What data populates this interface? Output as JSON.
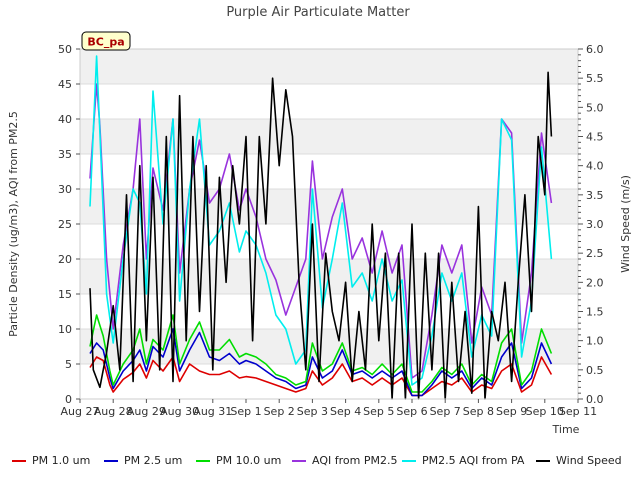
{
  "chart_data": {
    "type": "line",
    "title": "Purple Air Particulate Matter",
    "station_badge": "BC_pa",
    "xlabel": "Time",
    "ylabel_left": "Particle Density (ug/m3), AQI from PM2.5",
    "ylabel_right": "Wind Speed (m/s)",
    "ylim_left": [
      0,
      50
    ],
    "ylim_right": [
      0,
      6
    ],
    "x_ticks": [
      "Aug 27",
      "Aug 28",
      "Aug 29",
      "Aug 30",
      "Aug 31",
      "Sep 1",
      "Sep 2",
      "Sep 3",
      "Sep 4",
      "Sep 5",
      "Sep 6",
      "Sep 7",
      "Sep 8",
      "Sep 9",
      "Sep 10",
      "Sep 11"
    ],
    "y_ticks_left": [
      0,
      5,
      10,
      15,
      20,
      25,
      30,
      35,
      40,
      45,
      50
    ],
    "y_ticks_right": [
      "0.0",
      "0.5",
      "1.0",
      "1.5",
      "2.0",
      "2.5",
      "3.0",
      "3.5",
      "4.0",
      "4.5",
      "5.0",
      "5.5",
      "6.0"
    ],
    "x_unit": "days since Aug 27",
    "grid": true,
    "legend_position": "bottom",
    "series": [
      {
        "name": "PM 1.0 um",
        "color": "#dd0000",
        "axis": "left",
        "x": [
          0.3,
          0.5,
          0.7,
          0.9,
          1.0,
          1.3,
          1.6,
          1.8,
          2.0,
          2.2,
          2.5,
          2.8,
          3.0,
          3.3,
          3.6,
          3.9,
          4.2,
          4.5,
          4.8,
          5.0,
          5.3,
          5.6,
          5.9,
          6.2,
          6.5,
          6.8,
          7.0,
          7.3,
          7.6,
          7.9,
          8.2,
          8.5,
          8.8,
          9.1,
          9.4,
          9.7,
          10.0,
          10.3,
          10.6,
          10.9,
          11.2,
          11.5,
          11.8,
          12.1,
          12.4,
          12.7,
          13.0,
          13.3,
          13.6,
          13.9,
          14.2
        ],
        "y": [
          4.5,
          6.0,
          5.5,
          2.0,
          1.0,
          2.8,
          3.8,
          5.0,
          3.0,
          5.5,
          4.0,
          6.0,
          2.5,
          5.0,
          4.0,
          3.5,
          3.5,
          4.0,
          3.0,
          3.2,
          3.0,
          2.5,
          2.0,
          1.5,
          1.0,
          1.5,
          4.0,
          2.0,
          3.0,
          5.0,
          2.5,
          3.0,
          2.0,
          3.0,
          2.0,
          3.0,
          0.5,
          0.5,
          1.5,
          2.5,
          2.0,
          3.0,
          1.0,
          2.0,
          1.5,
          4.0,
          5.0,
          1.0,
          2.0,
          6.0,
          3.5
        ]
      },
      {
        "name": "PM 2.5 um",
        "color": "#0000cc",
        "axis": "left",
        "x": [
          0.3,
          0.5,
          0.7,
          0.9,
          1.0,
          1.3,
          1.6,
          1.8,
          2.0,
          2.2,
          2.5,
          2.8,
          3.0,
          3.3,
          3.6,
          3.9,
          4.2,
          4.5,
          4.8,
          5.0,
          5.3,
          5.6,
          5.9,
          6.2,
          6.5,
          6.8,
          7.0,
          7.3,
          7.6,
          7.9,
          8.2,
          8.5,
          8.8,
          9.1,
          9.4,
          9.7,
          10.0,
          10.3,
          10.6,
          10.9,
          11.2,
          11.5,
          11.8,
          12.1,
          12.4,
          12.7,
          13.0,
          13.3,
          13.6,
          13.9,
          14.2
        ],
        "y": [
          6.5,
          8.0,
          7.0,
          3.0,
          1.5,
          4.0,
          5.5,
          7.0,
          4.0,
          7.5,
          6.0,
          10.0,
          4.0,
          7.0,
          9.5,
          6.0,
          5.5,
          6.5,
          5.0,
          5.5,
          5.0,
          4.0,
          3.0,
          2.5,
          1.5,
          2.0,
          6.0,
          3.0,
          4.0,
          7.0,
          3.5,
          4.0,
          3.0,
          4.0,
          3.0,
          4.0,
          0.5,
          0.5,
          2.0,
          4.0,
          3.0,
          4.0,
          1.5,
          3.0,
          2.0,
          6.0,
          8.0,
          1.5,
          3.0,
          8.0,
          5.0
        ]
      },
      {
        "name": "PM 10.0 um",
        "color": "#00dd00",
        "axis": "left",
        "x": [
          0.3,
          0.5,
          0.7,
          0.9,
          1.0,
          1.3,
          1.6,
          1.8,
          2.0,
          2.2,
          2.5,
          2.8,
          3.0,
          3.3,
          3.6,
          3.9,
          4.2,
          4.5,
          4.8,
          5.0,
          5.3,
          5.6,
          5.9,
          6.2,
          6.5,
          6.8,
          7.0,
          7.3,
          7.6,
          7.9,
          8.2,
          8.5,
          8.8,
          9.1,
          9.4,
          9.7,
          10.0,
          10.3,
          10.6,
          10.9,
          11.2,
          11.5,
          11.8,
          12.1,
          12.4,
          12.7,
          13.0,
          13.3,
          13.6,
          13.9,
          14.2
        ],
        "y": [
          7.5,
          12.0,
          9.0,
          4.0,
          2.0,
          5.0,
          7.0,
          10.0,
          5.0,
          8.5,
          7.0,
          12.0,
          5.0,
          8.5,
          11.0,
          7.0,
          7.0,
          8.5,
          6.0,
          6.5,
          6.0,
          5.0,
          3.5,
          3.0,
          2.0,
          2.5,
          8.0,
          4.0,
          5.0,
          8.0,
          4.0,
          4.5,
          3.5,
          5.0,
          3.5,
          5.0,
          1.0,
          1.0,
          2.5,
          4.5,
          3.5,
          5.0,
          2.0,
          3.5,
          2.5,
          8.0,
          10.0,
          2.0,
          4.0,
          10.0,
          6.5
        ]
      },
      {
        "name": "AQI from PM2.5",
        "color": "#9933dd",
        "axis": "left",
        "x": [
          0.3,
          0.5,
          0.6,
          0.8,
          1.0,
          1.3,
          1.6,
          1.8,
          2.0,
          2.2,
          2.5,
          2.8,
          3.0,
          3.3,
          3.6,
          3.9,
          4.2,
          4.5,
          4.8,
          5.0,
          5.3,
          5.6,
          5.9,
          6.2,
          6.5,
          6.8,
          7.0,
          7.3,
          7.6,
          7.9,
          8.2,
          8.5,
          8.8,
          9.1,
          9.4,
          9.7,
          10.0,
          10.3,
          10.6,
          10.9,
          11.2,
          11.5,
          11.8,
          12.1,
          12.4,
          12.7,
          13.0,
          13.3,
          13.6,
          13.9,
          14.2
        ],
        "y": [
          31.5,
          45.0,
          39.0,
          20.0,
          10.0,
          22.0,
          30.0,
          40.0,
          20.0,
          33.0,
          27.0,
          40.0,
          18.0,
          30.0,
          37.0,
          28.0,
          30.0,
          35.0,
          27.0,
          30.0,
          26.0,
          20.0,
          17.0,
          12.0,
          16.0,
          20.0,
          34.0,
          20.0,
          26.0,
          30.0,
          20.0,
          23.0,
          18.0,
          24.0,
          18.0,
          22.0,
          3.0,
          4.0,
          12.0,
          22.0,
          18.0,
          22.0,
          8.0,
          16.0,
          12.0,
          40.0,
          38.0,
          8.0,
          18.0,
          38.0,
          28.0
        ]
      },
      {
        "name": "PM2.5 AQI from PA",
        "color": "#00eeee",
        "axis": "left",
        "x": [
          0.3,
          0.5,
          0.6,
          0.8,
          1.0,
          1.3,
          1.6,
          1.8,
          2.0,
          2.2,
          2.5,
          2.8,
          3.0,
          3.3,
          3.6,
          3.9,
          4.2,
          4.5,
          4.8,
          5.0,
          5.3,
          5.6,
          5.9,
          6.2,
          6.5,
          6.8,
          7.0,
          7.3,
          7.6,
          7.9,
          8.2,
          8.5,
          8.8,
          9.1,
          9.4,
          9.7,
          10.0,
          10.3,
          10.6,
          10.9,
          11.2,
          11.5,
          11.8,
          12.1,
          12.4,
          12.7,
          13.0,
          13.3,
          13.6,
          13.9,
          14.2
        ],
        "y": [
          27.5,
          49.0,
          38.0,
          15.0,
          8.0,
          20.0,
          30.0,
          28.0,
          15.0,
          44.0,
          25.0,
          40.0,
          14.0,
          30.0,
          40.0,
          22.0,
          24.0,
          28.0,
          21.0,
          24.0,
          22.0,
          18.0,
          12.0,
          10.0,
          5.0,
          7.0,
          30.0,
          13.0,
          20.0,
          28.0,
          16.0,
          18.0,
          14.0,
          20.0,
          14.0,
          17.0,
          2.0,
          3.0,
          9.0,
          18.0,
          14.0,
          18.0,
          6.0,
          12.0,
          9.0,
          40.0,
          37.0,
          6.0,
          14.0,
          36.0,
          20.0
        ]
      },
      {
        "name": "Wind Speed",
        "color": "#000000",
        "axis": "right",
        "x": [
          0.3,
          0.4,
          0.6,
          0.8,
          1.0,
          1.2,
          1.4,
          1.6,
          1.8,
          2.0,
          2.2,
          2.4,
          2.6,
          2.8,
          3.0,
          3.2,
          3.4,
          3.6,
          3.8,
          4.0,
          4.2,
          4.4,
          4.6,
          4.8,
          5.0,
          5.2,
          5.4,
          5.6,
          5.8,
          6.0,
          6.2,
          6.4,
          6.6,
          6.8,
          7.0,
          7.2,
          7.4,
          7.6,
          7.8,
          8.0,
          8.2,
          8.4,
          8.6,
          8.8,
          9.0,
          9.2,
          9.4,
          9.6,
          9.8,
          10.0,
          10.2,
          10.4,
          10.6,
          10.8,
          11.0,
          11.2,
          11.4,
          11.6,
          11.8,
          12.0,
          12.2,
          12.4,
          12.6,
          12.8,
          13.0,
          13.2,
          13.4,
          13.6,
          13.8,
          14.0,
          14.1,
          14.2
        ],
        "y": [
          1.9,
          0.5,
          0.2,
          0.8,
          1.6,
          0.5,
          3.5,
          0.3,
          4.0,
          1.0,
          3.8,
          0.5,
          4.5,
          0.3,
          5.2,
          1.0,
          4.5,
          1.5,
          4.0,
          0.5,
          3.8,
          2.0,
          4.0,
          3.0,
          4.5,
          1.0,
          4.5,
          3.0,
          5.5,
          4.0,
          5.3,
          4.5,
          2.0,
          0.5,
          3.0,
          0.3,
          2.5,
          1.5,
          1.0,
          2.0,
          0.3,
          1.5,
          0.5,
          3.0,
          1.0,
          2.5,
          0.0,
          2.5,
          0.0,
          3.0,
          0.0,
          2.5,
          0.5,
          2.5,
          0.0,
          2.0,
          0.3,
          1.5,
          0.1,
          3.3,
          0.0,
          1.5,
          1.0,
          2.0,
          0.3,
          2.0,
          3.5,
          1.5,
          4.5,
          3.5,
          5.6,
          4.5
        ]
      }
    ]
  }
}
